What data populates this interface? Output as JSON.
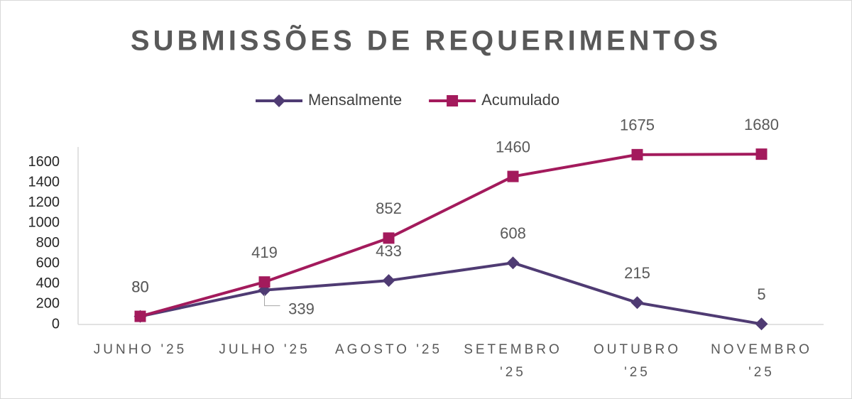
{
  "chart_data": {
    "type": "line",
    "title": "SUBMISSÕES DE REQUERIMENTOS",
    "categories": [
      "JUNHO '25",
      "JULHO '25",
      "AGOSTO '25",
      "SETEMBRO '25",
      "OUTUBRO '25",
      "NOVEMBRO '25"
    ],
    "series": [
      {
        "name": "Mensalmente",
        "color": "#4f3b73",
        "marker": "diamond",
        "values": [
          80,
          339,
          433,
          608,
          215,
          5
        ]
      },
      {
        "name": "Acumulado",
        "color": "#a31a5c",
        "marker": "square",
        "values": [
          80,
          419,
          852,
          1460,
          1675,
          1680
        ]
      }
    ],
    "ylim": [
      0,
      1800
    ],
    "yticks": [
      0,
      200,
      400,
      600,
      800,
      1000,
      1200,
      1400,
      1600
    ],
    "grid": false,
    "legend": "top"
  }
}
